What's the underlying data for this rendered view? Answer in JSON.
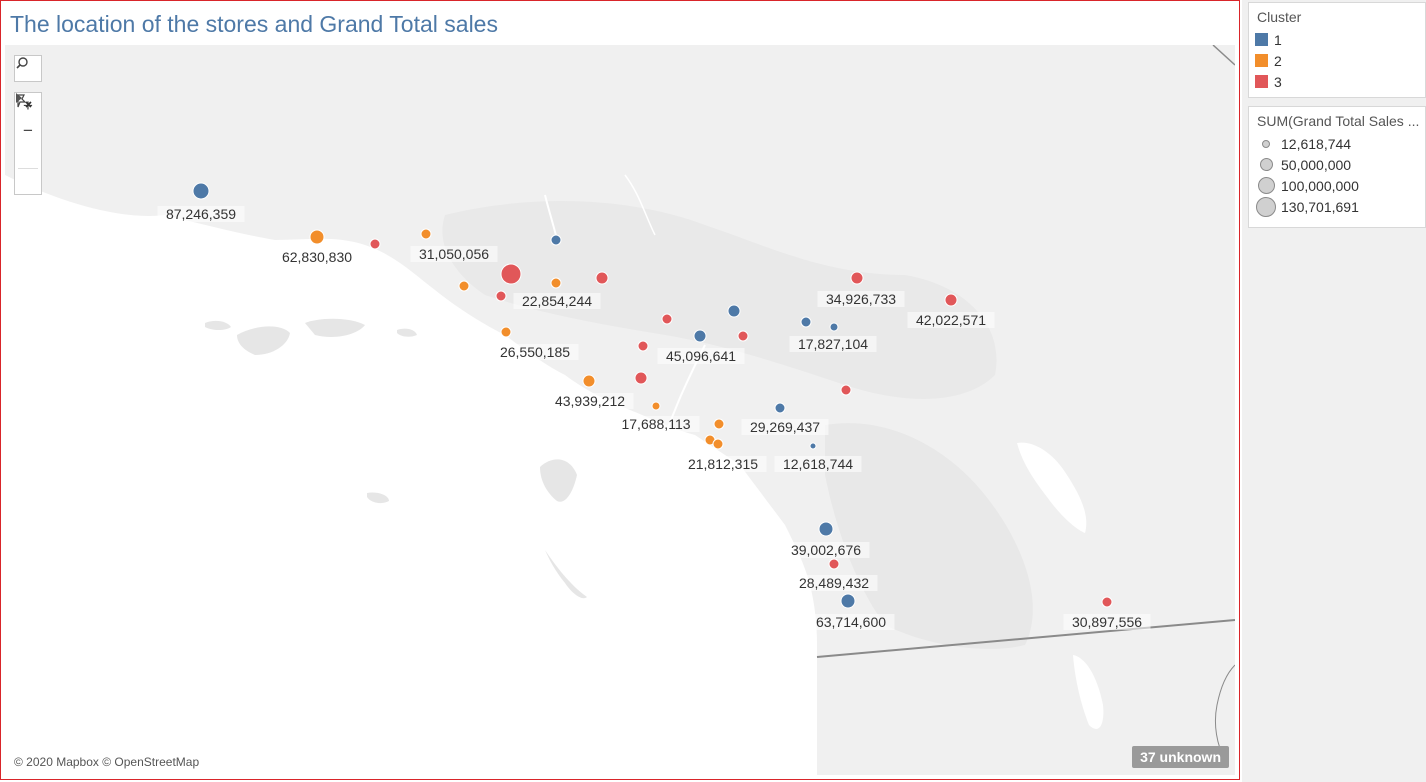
{
  "title": "The location of the stores and Grand Total sales",
  "attribution": "© 2020 Mapbox © OpenStreetMap",
  "unknown_badge": "37 unknown",
  "toolbar": {
    "search_icon": "search-icon",
    "zoom_in_label": "+",
    "zoom_out_label": "−",
    "reset_icon": "pin-reset-icon",
    "expand_icon": "play-triangle-icon"
  },
  "legend_cluster": {
    "title": "Cluster",
    "items": [
      {
        "label": "1",
        "color": "#4e79a7"
      },
      {
        "label": "2",
        "color": "#f28e2b"
      },
      {
        "label": "3",
        "color": "#e15759"
      }
    ]
  },
  "legend_size": {
    "title": "SUM(Grand Total Sales ...",
    "items": [
      {
        "label": "12,618,744",
        "value": 12618744
      },
      {
        "label": "50,000,000",
        "value": 50000000
      },
      {
        "label": "100,000,000",
        "value": 100000000
      },
      {
        "label": "130,701,691",
        "value": 130701691
      }
    ]
  },
  "map": {
    "base_color": "#f0f0f0",
    "land_color": "#e6e6e6",
    "water_color": "#ffffff",
    "stores": [
      {
        "cluster": "1",
        "label": "87,246,359"
      },
      {
        "cluster": "2",
        "label": "62,830,830"
      },
      {
        "cluster": "3",
        "label": ""
      },
      {
        "cluster": "2",
        "label": "31,050,056"
      },
      {
        "cluster": "1",
        "label": ""
      },
      {
        "cluster": "3",
        "label": ""
      },
      {
        "cluster": "2",
        "label": "22,854,244"
      },
      {
        "cluster": "3",
        "label": ""
      },
      {
        "cluster": "2",
        "label": ""
      },
      {
        "cluster": "3",
        "label": ""
      },
      {
        "cluster": "2",
        "label": "26,550,185"
      },
      {
        "cluster": "3",
        "label": ""
      },
      {
        "cluster": "1",
        "label": ""
      },
      {
        "cluster": "1",
        "label": "45,096,641"
      },
      {
        "cluster": "3",
        "label": ""
      },
      {
        "cluster": "3",
        "label": ""
      },
      {
        "cluster": "3",
        "label": "34,926,733"
      },
      {
        "cluster": "3",
        "label": "42,022,571"
      },
      {
        "cluster": "1",
        "label": ""
      },
      {
        "cluster": "1",
        "label": "17,827,104"
      },
      {
        "cluster": "2",
        "label": "43,939,212"
      },
      {
        "cluster": "3",
        "label": ""
      },
      {
        "cluster": "2",
        "label": "17,688,113"
      },
      {
        "cluster": "3",
        "label": ""
      },
      {
        "cluster": "1",
        "label": "29,269,437"
      },
      {
        "cluster": "2",
        "label": ""
      },
      {
        "cluster": "2",
        "label": ""
      },
      {
        "cluster": "2",
        "label": "21,812,315"
      },
      {
        "cluster": "1",
        "label": "12,618,744"
      },
      {
        "cluster": "1",
        "label": "39,002,676"
      },
      {
        "cluster": "3",
        "label": "28,489,432"
      },
      {
        "cluster": "1",
        "label": "63,714,600"
      },
      {
        "cluster": "3",
        "label": "30,897,556"
      }
    ]
  }
}
